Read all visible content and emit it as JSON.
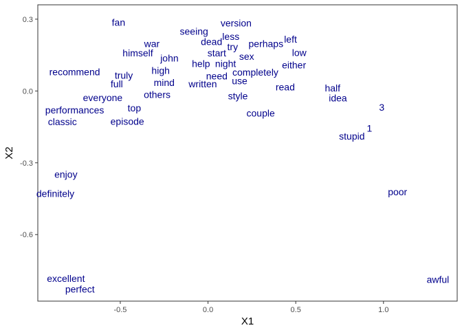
{
  "chart_data": {
    "type": "scatter",
    "marker": "text",
    "title": "",
    "xlabel": "X1",
    "ylabel": "X2",
    "xlim": [
      -0.97,
      1.42
    ],
    "ylim": [
      -0.878,
      0.36
    ],
    "xticks": [
      -0.5,
      0.0,
      0.5,
      1.0
    ],
    "xtick_labels": [
      "-0.5",
      "0.0",
      "0.5",
      "1.0"
    ],
    "yticks": [
      0.3,
      0.0,
      -0.3,
      -0.6
    ],
    "ytick_labels": [
      "0.3",
      "0.0",
      "-0.3",
      "-0.6"
    ],
    "grid": false,
    "text_color": "#00008B",
    "points": [
      {
        "label": "fan",
        "x": -0.51,
        "y": 0.287
      },
      {
        "label": "version",
        "x": 0.16,
        "y": 0.284
      },
      {
        "label": "seeing",
        "x": -0.08,
        "y": 0.25
      },
      {
        "label": "less",
        "x": 0.13,
        "y": 0.228
      },
      {
        "label": "left",
        "x": 0.47,
        "y": 0.216
      },
      {
        "label": "dead",
        "x": 0.02,
        "y": 0.206
      },
      {
        "label": "war",
        "x": -0.32,
        "y": 0.197
      },
      {
        "label": "perhaps",
        "x": 0.33,
        "y": 0.197
      },
      {
        "label": "try",
        "x": 0.14,
        "y": 0.185
      },
      {
        "label": "low",
        "x": 0.52,
        "y": 0.16
      },
      {
        "label": "himself",
        "x": -0.4,
        "y": 0.159
      },
      {
        "label": "start",
        "x": 0.05,
        "y": 0.159
      },
      {
        "label": "sex",
        "x": 0.22,
        "y": 0.144
      },
      {
        "label": "john",
        "x": -0.22,
        "y": 0.138
      },
      {
        "label": "help",
        "x": -0.04,
        "y": 0.114
      },
      {
        "label": "night",
        "x": 0.1,
        "y": 0.114
      },
      {
        "label": "either",
        "x": 0.49,
        "y": 0.109
      },
      {
        "label": "high",
        "x": -0.27,
        "y": 0.085
      },
      {
        "label": "completely",
        "x": 0.27,
        "y": 0.079
      },
      {
        "label": "recommend",
        "x": -0.76,
        "y": 0.08
      },
      {
        "label": "truly",
        "x": -0.48,
        "y": 0.066
      },
      {
        "label": "need",
        "x": 0.05,
        "y": 0.063
      },
      {
        "label": "use",
        "x": 0.18,
        "y": 0.042
      },
      {
        "label": "mind",
        "x": -0.25,
        "y": 0.036
      },
      {
        "label": "full",
        "x": -0.52,
        "y": 0.03
      },
      {
        "label": "written",
        "x": -0.03,
        "y": 0.029
      },
      {
        "label": "read",
        "x": 0.44,
        "y": 0.017
      },
      {
        "label": "half",
        "x": 0.71,
        "y": 0.012
      },
      {
        "label": "others",
        "x": -0.29,
        "y": -0.015
      },
      {
        "label": "style",
        "x": 0.17,
        "y": -0.021
      },
      {
        "label": "idea",
        "x": 0.74,
        "y": -0.029
      },
      {
        "label": "everyone",
        "x": -0.6,
        "y": -0.028
      },
      {
        "label": "3",
        "x": 0.99,
        "y": -0.068
      },
      {
        "label": "top",
        "x": -0.42,
        "y": -0.071
      },
      {
        "label": "performances",
        "x": -0.76,
        "y": -0.079
      },
      {
        "label": "couple",
        "x": 0.3,
        "y": -0.092
      },
      {
        "label": "episode",
        "x": -0.46,
        "y": -0.127
      },
      {
        "label": "classic",
        "x": -0.83,
        "y": -0.129
      },
      {
        "label": "1",
        "x": 0.92,
        "y": -0.156
      },
      {
        "label": "stupid",
        "x": 0.82,
        "y": -0.188
      },
      {
        "label": "enjoy",
        "x": -0.81,
        "y": -0.348
      },
      {
        "label": "poor",
        "x": 1.08,
        "y": -0.421
      },
      {
        "label": "definitely",
        "x": -0.87,
        "y": -0.429
      },
      {
        "label": "excellent",
        "x": -0.81,
        "y": -0.783
      },
      {
        "label": "awful",
        "x": 1.31,
        "y": -0.788
      },
      {
        "label": "perfect",
        "x": -0.73,
        "y": -0.828
      }
    ]
  }
}
